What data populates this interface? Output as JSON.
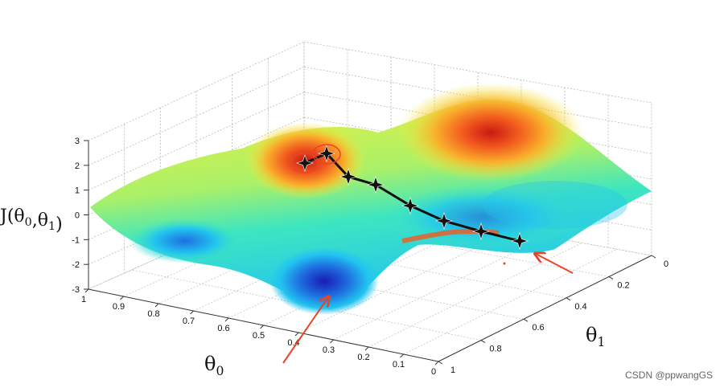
{
  "chart_data": {
    "type": "surface",
    "zlabel": "J(θ0,θ1)",
    "xlabel": "θ0",
    "ylabel": "θ1",
    "axes": {
      "z": {
        "range": [
          -3,
          3
        ],
        "ticks": [
          "3",
          "2",
          "1",
          "0",
          "-1",
          "-2",
          "-3"
        ]
      },
      "theta0": {
        "range": [
          1,
          0
        ],
        "ticks": [
          "1",
          "0.9",
          "0.8",
          "0.7",
          "0.6",
          "0.5",
          "0.4",
          "0.3",
          "0.2",
          "0.1",
          "0"
        ]
      },
      "theta1": {
        "range": [
          0,
          1
        ],
        "ticks": [
          "0",
          "0.2",
          "0.4",
          "0.6",
          "0.8",
          "1"
        ]
      }
    },
    "colormap": [
      "#1b1bb4",
      "#1e6fe0",
      "#22c4f0",
      "#3ee6c0",
      "#a8f06a",
      "#f4f03a",
      "#f9b02c",
      "#f25a1e",
      "#c81a12"
    ],
    "grid": true,
    "descent_path": {
      "color": "#111111",
      "points_count": 9,
      "start_marker_circled": true
    },
    "annotations": {
      "arrows": 2,
      "arrow_color": "#e8442a",
      "circled_points": 2
    }
  },
  "watermark": "CSDN @ppwangGS"
}
